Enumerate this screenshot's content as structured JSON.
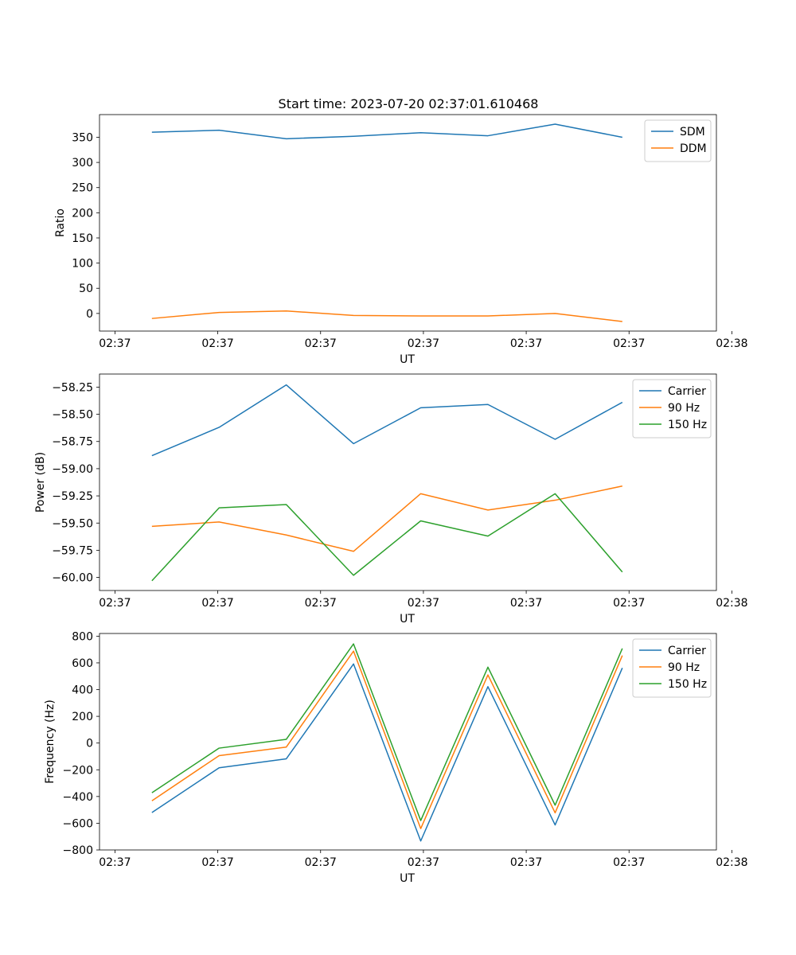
{
  "figure_title": "Start time: 2023-07-20 02:37:01.610468",
  "colors": {
    "blue": "#1f77b4",
    "orange": "#ff7f0e",
    "green": "#2ca02c"
  },
  "chart_data": [
    {
      "type": "line",
      "title": "Start time: 2023-07-20 02:37:01.610468",
      "xlabel": "UT",
      "ylabel": "Ratio",
      "x": [
        1,
        2,
        3,
        4,
        5,
        6,
        7,
        8
      ],
      "xlim": [
        0.22,
        9.4
      ],
      "xticks": [
        0.45,
        1.98,
        3.51,
        5.04,
        6.57,
        8.1,
        9.63
      ],
      "xtick_labels": [
        "02:37",
        "02:37",
        "02:37",
        "02:37",
        "02:37",
        "02:37",
        "02:38"
      ],
      "ylim": [
        -35,
        395
      ],
      "yticks": [
        0,
        50,
        100,
        150,
        200,
        250,
        300,
        350
      ],
      "ytick_labels": [
        "0",
        "50",
        "100",
        "150",
        "200",
        "250",
        "300",
        "350"
      ],
      "legend": "top-right",
      "series": [
        {
          "name": "SDM",
          "color": "#1f77b4",
          "values": [
            360,
            364,
            347,
            352,
            359,
            353,
            376,
            350
          ]
        },
        {
          "name": "DDM",
          "color": "#ff7f0e",
          "values": [
            -10,
            2,
            5,
            -4,
            -5,
            -5,
            0,
            -16
          ]
        }
      ]
    },
    {
      "type": "line",
      "title": "",
      "xlabel": "UT",
      "ylabel": "Power (dB)",
      "x": [
        1,
        2,
        3,
        4,
        5,
        6,
        7,
        8
      ],
      "xlim": [
        0.22,
        9.4
      ],
      "xticks": [
        0.45,
        1.98,
        3.51,
        5.04,
        6.57,
        8.1,
        9.63
      ],
      "xtick_labels": [
        "02:37",
        "02:37",
        "02:37",
        "02:37",
        "02:37",
        "02:37",
        "02:38"
      ],
      "ylim": [
        -60.12,
        -58.13
      ],
      "yticks": [
        -60.0,
        -59.75,
        -59.5,
        -59.25,
        -59.0,
        -58.75,
        -58.5,
        -58.25
      ],
      "ytick_labels": [
        "−60.00",
        "−59.75",
        "−59.50",
        "−59.25",
        "−59.00",
        "−58.75",
        "−58.50",
        "−58.25"
      ],
      "legend": "top-right",
      "series": [
        {
          "name": "Carrier",
          "color": "#1f77b4",
          "values": [
            -58.88,
            -58.62,
            -58.23,
            -58.77,
            -58.44,
            -58.41,
            -58.73,
            -58.39
          ]
        },
        {
          "name": "90 Hz",
          "color": "#ff7f0e",
          "values": [
            -59.53,
            -59.49,
            -59.61,
            -59.76,
            -59.23,
            -59.38,
            -59.29,
            -59.16
          ]
        },
        {
          "name": "150 Hz",
          "color": "#2ca02c",
          "values": [
            -60.03,
            -59.36,
            -59.33,
            -59.98,
            -59.48,
            -59.62,
            -59.23,
            -59.95
          ]
        }
      ]
    },
    {
      "type": "line",
      "title": "",
      "xlabel": "UT",
      "ylabel": "Frequency (Hz)",
      "x": [
        1,
        2,
        3,
        4,
        5,
        6,
        7,
        8
      ],
      "xlim": [
        0.22,
        9.4
      ],
      "xticks": [
        0.45,
        1.98,
        3.51,
        5.04,
        6.57,
        8.1,
        9.63
      ],
      "xtick_labels": [
        "02:37",
        "02:37",
        "02:37",
        "02:37",
        "02:37",
        "02:37",
        "02:38"
      ],
      "ylim": [
        -800,
        820
      ],
      "yticks": [
        -800,
        -600,
        -400,
        -200,
        0,
        200,
        400,
        600,
        800
      ],
      "ytick_labels": [
        "−800",
        "−600",
        "−400",
        "−200",
        "0",
        "200",
        "400",
        "600",
        "800"
      ],
      "legend": "top-right",
      "series": [
        {
          "name": "Carrier",
          "color": "#1f77b4",
          "values": [
            -520,
            -185,
            -118,
            592,
            -733,
            422,
            -613,
            562
          ]
        },
        {
          "name": "90 Hz",
          "color": "#ff7f0e",
          "values": [
            -432,
            -94,
            -30,
            688,
            -640,
            510,
            -522,
            655
          ]
        },
        {
          "name": "150 Hz",
          "color": "#2ca02c",
          "values": [
            -372,
            -38,
            28,
            742,
            -580,
            568,
            -465,
            708
          ]
        }
      ]
    }
  ]
}
